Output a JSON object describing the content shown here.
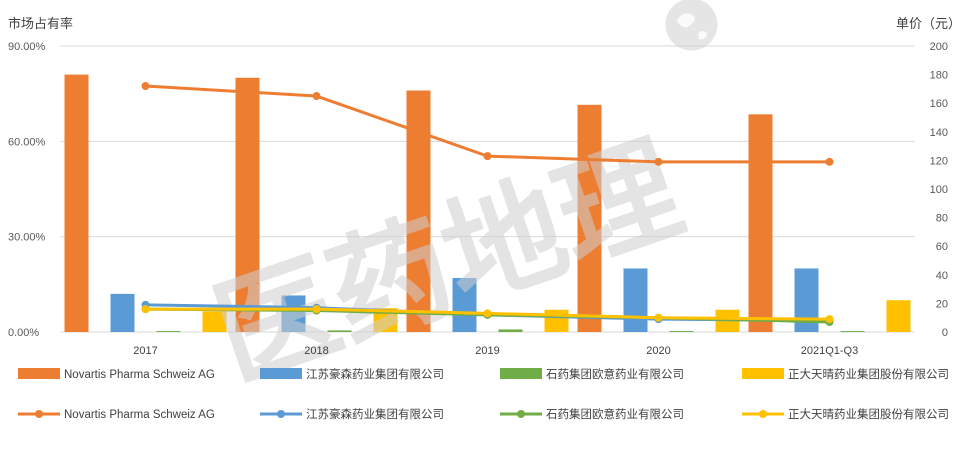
{
  "chart_data": {
    "type": "bar",
    "ylabel_left": "市场占有率",
    "ylabel_right": "单价（元）",
    "categories": [
      "2017",
      "2018",
      "2019",
      "2020",
      "2021Q1-Q3"
    ],
    "y_left_ticks": [
      "0.00%",
      "30.00%",
      "60.00%",
      "90.00%"
    ],
    "y_right_ticks": [
      "0",
      "20",
      "40",
      "60",
      "80",
      "100",
      "120",
      "140",
      "160",
      "180",
      "200"
    ],
    "ylim_left": [
      0,
      90
    ],
    "ylim_right": [
      0,
      200
    ],
    "grid": true,
    "legend_position": "bottom",
    "bar_series": [
      {
        "name": "Novartis Pharma Schweiz AG",
        "color": "#ED7D31",
        "values": [
          81.0,
          80.0,
          76.0,
          71.5,
          68.5
        ]
      },
      {
        "name": "江苏豪森药业集团有限公司",
        "color": "#5B9BD5",
        "values": [
          12.0,
          11.5,
          17.0,
          20.0,
          20.0
        ]
      },
      {
        "name": "石药集团欧意药业有限公司",
        "color": "#70AD47",
        "values": [
          0.3,
          0.5,
          0.8,
          0.3,
          0.3
        ]
      },
      {
        "name": "正大天晴药业集团股份有限公司",
        "color": "#FFC000",
        "values": [
          6.5,
          7.5,
          7.0,
          7.0,
          10.0
        ]
      }
    ],
    "line_series": [
      {
        "name": "Novartis Pharma Schweiz AG",
        "color": "#ED7D31",
        "values": [
          172,
          165,
          123,
          119,
          119
        ]
      },
      {
        "name": "江苏豪森药业集团有限公司",
        "color": "#5B9BD5",
        "values": [
          19,
          17,
          12,
          9,
          8
        ]
      },
      {
        "name": "石药集团欧意药业有限公司",
        "color": "#70AD47",
        "values": [
          16,
          15,
          12,
          10,
          7
        ]
      },
      {
        "name": "正大天晴药业集团股份有限公司",
        "color": "#FFC000",
        "values": [
          16,
          16,
          13,
          10,
          9
        ]
      }
    ]
  },
  "watermark": {
    "text": "医药地理",
    "icon": "globe-icon"
  }
}
